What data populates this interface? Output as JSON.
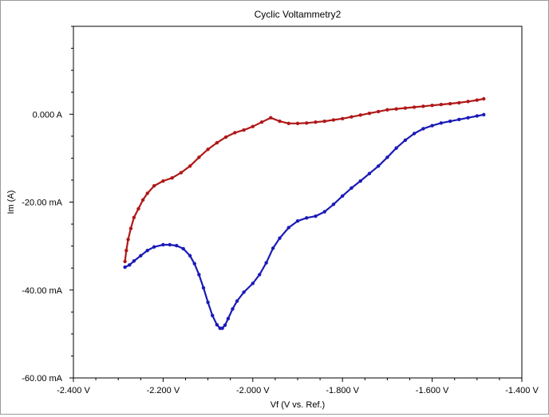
{
  "chart_data": {
    "type": "line",
    "title": "Cyclic Voltammetry2",
    "xlabel": "Vf (V vs. Ref.)",
    "ylabel": "Im (A)",
    "xlim": [
      -2.4,
      -1.4
    ],
    "ylim": [
      -0.06,
      0.02
    ],
    "x_ticks": [
      -2.4,
      -2.2,
      -2.0,
      -1.8,
      -1.6,
      -1.4
    ],
    "x_tick_labels": [
      "-2.400 V",
      "-2.200 V",
      "-2.000 V",
      "-1.800 V",
      "-1.600 V",
      "-1.400 V"
    ],
    "y_ticks": [
      0.0,
      -0.02,
      -0.04,
      -0.06
    ],
    "y_tick_labels": [
      "0.000 A",
      "-20.00 mA",
      "-40.00 mA",
      "-60.00 mA"
    ],
    "grid": false,
    "series": [
      {
        "color": "#b01818",
        "x": [
          -2.285,
          -2.282,
          -2.278,
          -2.272,
          -2.265,
          -2.255,
          -2.245,
          -2.235,
          -2.22,
          -2.2,
          -2.18,
          -2.16,
          -2.14,
          -2.12,
          -2.1,
          -2.08,
          -2.06,
          -2.04,
          -2.02,
          -2.0,
          -1.98,
          -1.96,
          -1.94,
          -1.92,
          -1.9,
          -1.88,
          -1.86,
          -1.84,
          -1.82,
          -1.8,
          -1.78,
          -1.76,
          -1.74,
          -1.72,
          -1.7,
          -1.68,
          -1.66,
          -1.64,
          -1.62,
          -1.6,
          -1.58,
          -1.56,
          -1.54,
          -1.52,
          -1.5,
          -1.485
        ],
        "y": [
          -0.0335,
          -0.031,
          -0.0285,
          -0.026,
          -0.0235,
          -0.0215,
          -0.0195,
          -0.018,
          -0.0163,
          -0.0152,
          -0.0145,
          -0.0133,
          -0.0118,
          -0.0098,
          -0.008,
          -0.0065,
          -0.0052,
          -0.0042,
          -0.0036,
          -0.0028,
          -0.0018,
          -0.0008,
          -0.0016,
          -0.0021,
          -0.0021,
          -0.002,
          -0.0018,
          -0.0016,
          -0.0013,
          -0.001,
          -0.0006,
          -0.0002,
          0.0002,
          0.0006,
          0.001,
          0.0012,
          0.0014,
          0.0016,
          0.0018,
          0.002,
          0.0022,
          0.0024,
          0.0026,
          0.0029,
          0.0032,
          0.0035
        ]
      },
      {
        "color": "#1a1ab8",
        "x": [
          -2.285,
          -2.275,
          -2.265,
          -2.25,
          -2.235,
          -2.22,
          -2.2,
          -2.185,
          -2.17,
          -2.155,
          -2.14,
          -2.13,
          -2.12,
          -2.11,
          -2.1,
          -2.09,
          -2.08,
          -2.073,
          -2.068,
          -2.062,
          -2.055,
          -2.045,
          -2.035,
          -2.02,
          -2.0,
          -1.985,
          -1.97,
          -1.955,
          -1.94,
          -1.92,
          -1.9,
          -1.88,
          -1.86,
          -1.84,
          -1.82,
          -1.8,
          -1.78,
          -1.76,
          -1.74,
          -1.72,
          -1.7,
          -1.68,
          -1.66,
          -1.64,
          -1.62,
          -1.6,
          -1.58,
          -1.56,
          -1.54,
          -1.52,
          -1.5,
          -1.485
        ],
        "y": [
          -0.0348,
          -0.0343,
          -0.0334,
          -0.0322,
          -0.031,
          -0.0302,
          -0.0297,
          -0.0297,
          -0.0299,
          -0.0306,
          -0.0322,
          -0.034,
          -0.0365,
          -0.0395,
          -0.0428,
          -0.0458,
          -0.0479,
          -0.0487,
          -0.0487,
          -0.048,
          -0.0465,
          -0.0443,
          -0.0425,
          -0.0405,
          -0.0385,
          -0.0365,
          -0.0338,
          -0.0305,
          -0.0282,
          -0.0258,
          -0.0243,
          -0.0236,
          -0.0232,
          -0.0222,
          -0.0205,
          -0.0186,
          -0.0168,
          -0.0152,
          -0.0135,
          -0.0118,
          -0.0098,
          -0.0077,
          -0.0059,
          -0.0044,
          -0.0033,
          -0.0026,
          -0.002,
          -0.0016,
          -0.0012,
          -0.0008,
          -0.0004,
          -0.0001
        ]
      }
    ]
  }
}
